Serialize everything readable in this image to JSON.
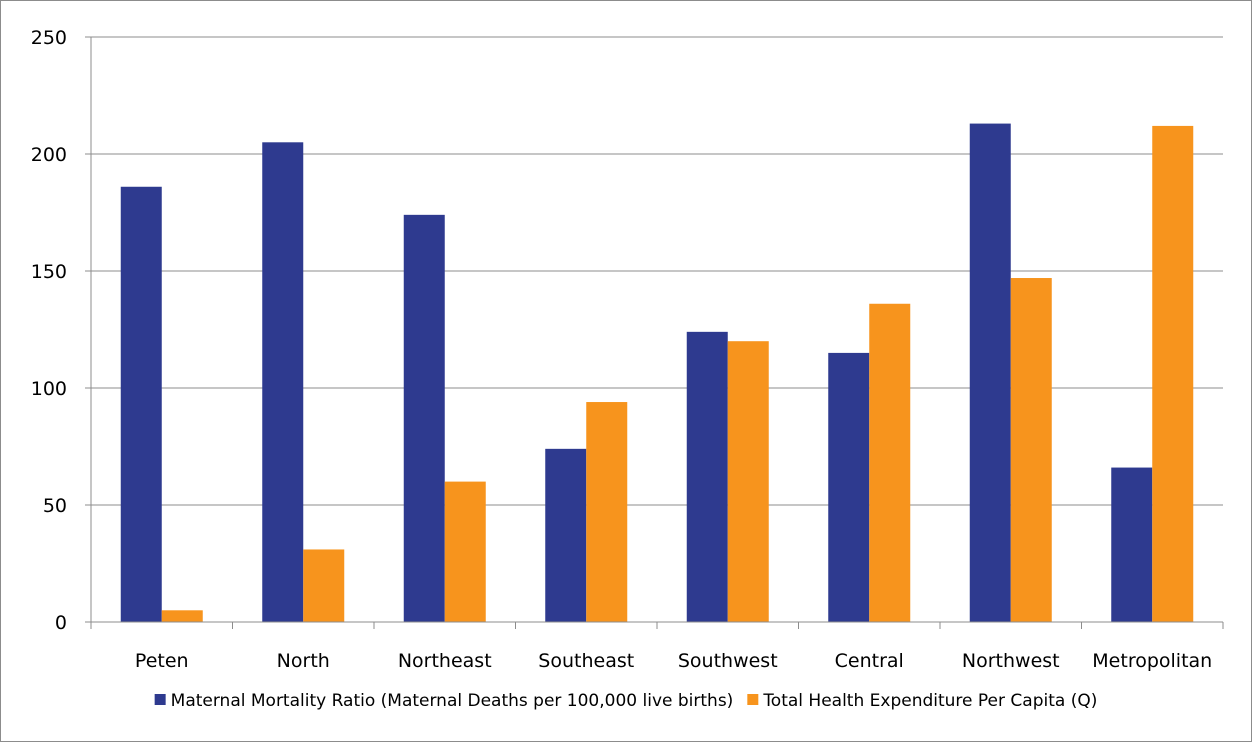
{
  "chart_data": {
    "type": "bar",
    "categories": [
      "Peten",
      "North",
      "Northeast",
      "Southeast",
      "Southwest",
      "Central",
      "Northwest",
      "Metropolitan"
    ],
    "series": [
      {
        "name": "Maternal Mortality Ratio (Maternal Deaths per 100,000 live births)",
        "color": "#2E3A8F",
        "values": [
          186,
          205,
          174,
          74,
          124,
          115,
          213,
          66
        ]
      },
      {
        "name": "Total Health Expenditure Per Capita (Q)",
        "color": "#F7941D",
        "values": [
          5,
          31,
          60,
          94,
          120,
          136,
          147,
          212
        ]
      }
    ],
    "ylim": [
      0,
      250
    ],
    "yticks": [
      "0",
      "50",
      "100",
      "150",
      "200",
      "250"
    ],
    "xlabel": "",
    "ylabel": "",
    "grid": true,
    "legend": "bottom"
  }
}
